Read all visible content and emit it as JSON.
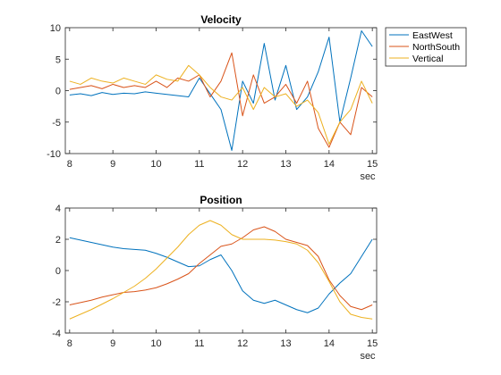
{
  "chart_data": [
    {
      "type": "line",
      "title": "Velocity",
      "xlabel": "",
      "ylabel": "",
      "x_unit": "sec",
      "xlim": [
        7.9,
        15.1
      ],
      "ylim": [
        -10,
        10
      ],
      "xticks": [
        8,
        9,
        10,
        11,
        12,
        13,
        14,
        15
      ],
      "yticks": [
        10,
        5,
        0,
        -5,
        -10
      ],
      "grid": false,
      "legend": "outside-right",
      "x": [
        8.0,
        8.25,
        8.5,
        8.75,
        9.0,
        9.25,
        9.5,
        9.75,
        10.0,
        10.25,
        10.5,
        10.75,
        11.0,
        11.25,
        11.5,
        11.75,
        12.0,
        12.25,
        12.5,
        12.75,
        13.0,
        13.25,
        13.5,
        13.75,
        14.0,
        14.25,
        14.5,
        14.75,
        15.0
      ],
      "series": [
        {
          "name": "EastWest",
          "color": "#0072BD",
          "values": [
            -0.7,
            -0.5,
            -0.8,
            -0.3,
            -0.6,
            -0.4,
            -0.5,
            -0.2,
            -0.4,
            -0.6,
            -0.8,
            -1.0,
            2.0,
            -0.5,
            -3.0,
            -9.5,
            1.5,
            -2.0,
            7.5,
            -1.5,
            4.0,
            -3.0,
            -1.0,
            3.0,
            8.5,
            -5.0,
            2.0,
            9.5,
            7.0
          ]
        },
        {
          "name": "NorthSouth",
          "color": "#D95319",
          "values": [
            0.2,
            0.5,
            0.8,
            0.3,
            1.0,
            0.5,
            0.8,
            0.5,
            1.5,
            0.5,
            2.0,
            1.5,
            2.5,
            -1.0,
            1.5,
            6.0,
            -4.0,
            2.5,
            -2.0,
            -1.0,
            1.0,
            -2.0,
            1.5,
            -6.0,
            -9.0,
            -5.0,
            -7.0,
            0.5,
            -1.0
          ]
        },
        {
          "name": "Vertical",
          "color": "#EDB120",
          "values": [
            1.5,
            1.0,
            2.0,
            1.5,
            1.2,
            2.0,
            1.5,
            1.0,
            2.5,
            1.8,
            1.5,
            4.0,
            2.5,
            0.5,
            -1.0,
            -1.5,
            0.5,
            -3.0,
            0.5,
            -1.0,
            -0.5,
            -2.5,
            -1.5,
            -3.5,
            -8.5,
            -5.0,
            -3.0,
            1.5,
            -2.0
          ]
        }
      ]
    },
    {
      "type": "line",
      "title": "Position",
      "xlabel": "",
      "ylabel": "",
      "x_unit": "sec",
      "xlim": [
        7.9,
        15.1
      ],
      "ylim": [
        -4,
        4
      ],
      "xticks": [
        8,
        9,
        10,
        11,
        12,
        13,
        14,
        15
      ],
      "yticks": [
        4,
        2,
        0,
        -2,
        -4
      ],
      "grid": false,
      "legend": "none",
      "x": [
        8.0,
        8.25,
        8.5,
        8.75,
        9.0,
        9.25,
        9.5,
        9.75,
        10.0,
        10.25,
        10.5,
        10.75,
        11.0,
        11.25,
        11.5,
        11.75,
        12.0,
        12.25,
        12.5,
        12.75,
        13.0,
        13.25,
        13.5,
        13.75,
        14.0,
        14.25,
        14.5,
        14.75,
        15.0
      ],
      "series": [
        {
          "name": "EastWest",
          "color": "#0072BD",
          "values": [
            2.1,
            1.95,
            1.8,
            1.65,
            1.5,
            1.4,
            1.35,
            1.3,
            1.1,
            0.85,
            0.55,
            0.25,
            0.3,
            0.7,
            1.0,
            0.0,
            -1.3,
            -1.9,
            -2.1,
            -1.9,
            -2.2,
            -2.5,
            -2.7,
            -2.4,
            -1.5,
            -0.8,
            -0.2,
            0.9,
            2.0
          ]
        },
        {
          "name": "NorthSouth",
          "color": "#D95319",
          "values": [
            -2.2,
            -2.05,
            -1.9,
            -1.7,
            -1.55,
            -1.4,
            -1.35,
            -1.25,
            -1.1,
            -0.85,
            -0.55,
            -0.2,
            0.45,
            1.0,
            1.55,
            1.7,
            2.1,
            2.6,
            2.8,
            2.5,
            2.0,
            1.8,
            1.6,
            0.9,
            -0.6,
            -1.6,
            -2.3,
            -2.5,
            -2.2
          ]
        },
        {
          "name": "Vertical",
          "color": "#EDB120",
          "values": [
            -3.1,
            -2.8,
            -2.5,
            -2.15,
            -1.8,
            -1.4,
            -1.0,
            -0.5,
            0.1,
            0.8,
            1.5,
            2.3,
            2.9,
            3.2,
            2.9,
            2.3,
            2.0,
            2.0,
            2.0,
            1.95,
            1.85,
            1.7,
            1.3,
            0.5,
            -0.7,
            -2.0,
            -2.8,
            -3.0,
            -3.1
          ]
        }
      ]
    }
  ]
}
